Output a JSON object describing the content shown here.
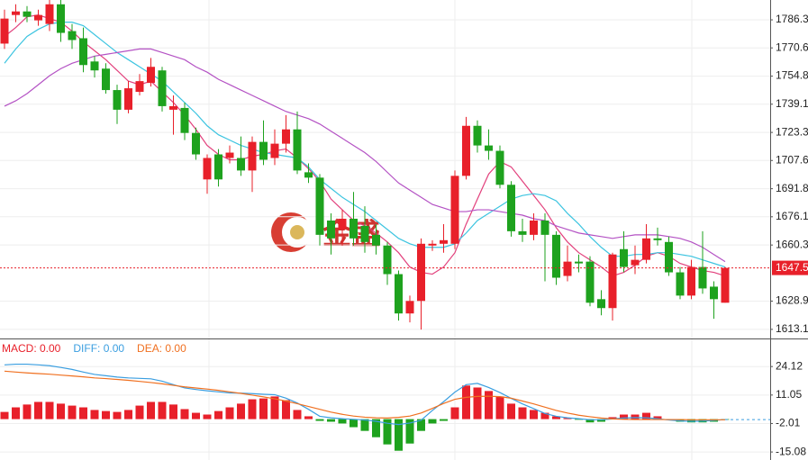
{
  "chart_data": [
    {
      "type": "candlestick",
      "open": [
        1773,
        1789,
        1791,
        1786,
        1784,
        1795,
        1780,
        1776,
        1763,
        1759,
        1747,
        1736,
        1746,
        1751,
        1758,
        1736,
        1737,
        1723,
        1697,
        1711,
        1709,
        1709,
        1702,
        1718,
        1709,
        1717,
        1725,
        1701,
        1698,
        1674,
        1669,
        1675,
        1671,
        1666,
        1660,
        1644,
        1622,
        1629,
        1660,
        1661,
        1661,
        1699,
        1727,
        1716,
        1713,
        1694,
        1668,
        1666,
        1674,
        1666,
        1643,
        1651,
        1651,
        1630,
        1625,
        1658,
        1649,
        1652,
        1664,
        1662,
        1645,
        1632,
        1648,
        1637,
        1628
      ],
      "close": [
        1787,
        1791,
        1788,
        1789,
        1795,
        1779,
        1775,
        1761,
        1758,
        1747,
        1736,
        1748,
        1752,
        1760,
        1738,
        1738,
        1723,
        1711,
        1709,
        1697,
        1712,
        1702,
        1718,
        1708,
        1717,
        1725,
        1702,
        1698,
        1666,
        1664,
        1675,
        1664,
        1662,
        1660,
        1644,
        1622,
        1629,
        1661,
        1661,
        1663,
        1699,
        1727,
        1716,
        1713,
        1694,
        1668,
        1666,
        1674,
        1666,
        1642,
        1651,
        1650,
        1628,
        1625,
        1655,
        1648,
        1652,
        1664,
        1663,
        1645,
        1632,
        1648,
        1636,
        1630,
        1647.5
      ],
      "high": [
        1792,
        1795,
        1794,
        1792,
        1798,
        1798,
        1784,
        1782,
        1766,
        1762,
        1750,
        1752,
        1756,
        1765,
        1760,
        1744,
        1740,
        1726,
        1711,
        1714,
        1716,
        1721,
        1721,
        1730,
        1725,
        1733,
        1735,
        1706,
        1700,
        1678,
        1680,
        1690,
        1682,
        1672,
        1662,
        1646,
        1632,
        1664,
        1663,
        1672,
        1702,
        1732,
        1730,
        1725,
        1716,
        1696,
        1675,
        1678,
        1678,
        1668,
        1660,
        1655,
        1654,
        1635,
        1656,
        1668,
        1660,
        1672,
        1670,
        1665,
        1648,
        1652,
        1668,
        1640,
        1648
      ],
      "low": [
        1770,
        1785,
        1785,
        1783,
        1780,
        1774,
        1770,
        1757,
        1754,
        1745,
        1728,
        1734,
        1744,
        1749,
        1735,
        1722,
        1719,
        1708,
        1689,
        1693,
        1706,
        1699,
        1690,
        1705,
        1705,
        1712,
        1700,
        1695,
        1660,
        1655,
        1660,
        1660,
        1656,
        1655,
        1638,
        1618,
        1617,
        1613,
        1657,
        1656,
        1658,
        1697,
        1712,
        1708,
        1692,
        1665,
        1662,
        1663,
        1640,
        1638,
        1640,
        1645,
        1626,
        1621,
        1618,
        1645,
        1644,
        1650,
        1660,
        1643,
        1630,
        1630,
        1633,
        1619,
        1628
      ],
      "up_color": "#e8202a",
      "down_color": "#1ea21e",
      "series": [
        {
          "color": "#e2407c",
          "values": [
            1777,
            1782,
            1788,
            1789,
            1787,
            1785,
            1780,
            1774,
            1769,
            1764,
            1758,
            1752,
            1750,
            1752,
            1746,
            1740,
            1733,
            1725,
            1716,
            1711,
            1708,
            1708,
            1710,
            1711,
            1713,
            1714,
            1709,
            1703,
            1696,
            1686,
            1680,
            1674,
            1671,
            1667,
            1662,
            1656,
            1648,
            1645,
            1644,
            1648,
            1656,
            1672,
            1686,
            1700,
            1707,
            1704,
            1696,
            1688,
            1680,
            1670,
            1662,
            1656,
            1652,
            1648,
            1643,
            1645,
            1649,
            1654,
            1656,
            1654,
            1650,
            1648,
            1646,
            1645,
            1643
          ]
        },
        {
          "color": "#3cc4e0",
          "values": [
            1762,
            1770,
            1777,
            1781,
            1784,
            1785,
            1785,
            1783,
            1778,
            1773,
            1768,
            1764,
            1760,
            1756,
            1752,
            1746,
            1740,
            1734,
            1727,
            1722,
            1719,
            1716,
            1714,
            1712,
            1711,
            1710,
            1709,
            1704,
            1697,
            1692,
            1687,
            1683,
            1679,
            1674,
            1669,
            1664,
            1661,
            1659,
            1659,
            1659,
            1661,
            1667,
            1674,
            1678,
            1682,
            1686,
            1688,
            1689,
            1688,
            1685,
            1678,
            1672,
            1665,
            1659,
            1654,
            1654,
            1655,
            1655,
            1656,
            1656,
            1655,
            1654,
            1652,
            1650,
            1648
          ]
        },
        {
          "color": "#b452c4",
          "values": [
            1738,
            1741,
            1745,
            1750,
            1755,
            1759,
            1762,
            1764,
            1766,
            1767,
            1768,
            1769,
            1770,
            1770,
            1768,
            1766,
            1764,
            1760,
            1757,
            1753,
            1750,
            1747,
            1744,
            1741,
            1738,
            1735,
            1733,
            1731,
            1728,
            1724,
            1720,
            1716,
            1712,
            1707,
            1701,
            1695,
            1691,
            1687,
            1683,
            1681,
            1679,
            1679,
            1680,
            1680,
            1679,
            1678,
            1677,
            1675,
            1674,
            1671,
            1669,
            1667,
            1666,
            1665,
            1664,
            1665,
            1666,
            1666,
            1666,
            1665,
            1664,
            1662,
            1659,
            1655,
            1651
          ]
        }
      ],
      "last_price": {
        "value": 1647.5,
        "label": "1647.5"
      },
      "watermark": "金盛",
      "ylim": [
        1608.0,
        1797.4
      ],
      "yticks": [
        1786.3,
        1770.6,
        1754.8,
        1739.1,
        1723.3,
        1707.6,
        1691.8,
        1676.1,
        1660.3,
        1628.9,
        1613.1
      ],
      "grid": true
    },
    {
      "type": "macd",
      "series": [
        {
          "name": "MACD: 0.00",
          "color": "#e8202a",
          "down_color": "#1ea21e",
          "values": [
            3.3,
            5.4,
            6.7,
            7.9,
            7.9,
            7.1,
            6.2,
            5.4,
            4.2,
            3.7,
            3.3,
            4.2,
            6.2,
            7.9,
            7.9,
            6.7,
            4.6,
            2.9,
            2.1,
            3.7,
            5.4,
            7.1,
            9.1,
            9.5,
            10.4,
            8.7,
            4.2,
            1.3,
            -0.8,
            -1.2,
            -2,
            -3.7,
            -5.4,
            -8.3,
            -11.6,
            -14.5,
            -11.2,
            -5.4,
            -2,
            -0.8,
            5.4,
            15.4,
            14.5,
            12.9,
            10.4,
            7.1,
            5.4,
            4.2,
            2.9,
            1.3,
            0.5,
            -0.3,
            -1.5,
            -1.2,
            0.9,
            2.1,
            2.1,
            2.9,
            1.3,
            -0.3,
            -1.2,
            -1.5,
            -1.5,
            -1.2,
            -0.3
          ]
        },
        {
          "name": "DIFF: 0.00",
          "color": "#3a9ee0",
          "values": [
            24.9,
            25.2,
            25.2,
            24.9,
            24.5,
            23.7,
            22.8,
            21.6,
            20.5,
            19.9,
            19.3,
            18.9,
            18.7,
            18.5,
            17.4,
            15.8,
            14.3,
            13.6,
            13,
            12.5,
            12,
            11.9,
            11.7,
            11.4,
            11.2,
            9.6,
            7.4,
            4.5,
            1.3,
            0.6,
            0.2,
            -0.1,
            -0.4,
            -1,
            -1.9,
            -2.5,
            -1.8,
            -0.5,
            4,
            8,
            12.4,
            15.8,
            16.4,
            14.5,
            12.2,
            9.5,
            7,
            4.8,
            2.6,
            1.3,
            0.6,
            0.2,
            -0.3,
            -0.3,
            0.1,
            0.5,
            0.7,
            0.6,
            0.2,
            -0.4,
            -0.8,
            -1,
            -0.9,
            -0.6,
            -0.2
          ]
        },
        {
          "name": "DEA: 0.00",
          "color": "#f07020",
          "values": [
            22,
            21.6,
            21.2,
            20.9,
            20.6,
            20.2,
            19.8,
            19.4,
            18.9,
            18.6,
            18.2,
            17.8,
            17.3,
            16.8,
            16.2,
            15.5,
            14.8,
            14.3,
            13.8,
            13.2,
            12.5,
            11.8,
            11,
            10.2,
            9.3,
            8.3,
            7.1,
            5.8,
            4.5,
            3.2,
            2.2,
            1.4,
            0.9,
            0.6,
            0.5,
            0.8,
            1.4,
            2.8,
            4.9,
            7.2,
            9.1,
            10,
            10.4,
            10.5,
            10.3,
            9.6,
            8.3,
            7,
            5.5,
            4,
            2.8,
            1.8,
            1.1,
            0.5,
            0.1,
            -0.1,
            -0.2,
            -0.2,
            -0.2,
            -0.2,
            -0.2,
            -0.3,
            -0.3,
            -0.3,
            -0.3
          ]
        }
      ],
      "ylim": [
        -17.1,
        37.0
      ],
      "yticks": [
        24.12,
        11.05,
        -2.01,
        -15.08
      ],
      "grid": true
    }
  ]
}
